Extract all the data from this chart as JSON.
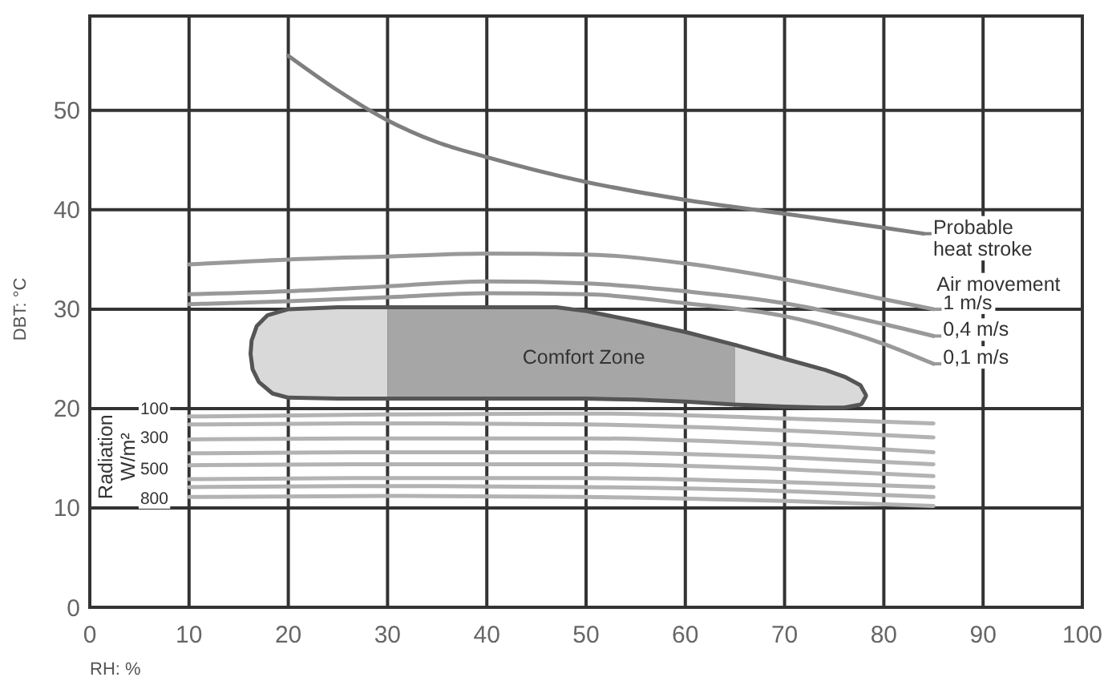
{
  "chart_data": {
    "type": "line",
    "xlabel": "RH: %",
    "ylabel": "DBT: °C",
    "xlim": [
      0,
      100
    ],
    "ylim": [
      0,
      59.5
    ],
    "xticks": [
      0,
      10,
      20,
      30,
      40,
      50,
      60,
      70,
      80,
      90,
      100
    ],
    "yticks": [
      0,
      10,
      20,
      30,
      40,
      50
    ],
    "grid": true,
    "legend": "right",
    "legend_title": "Air movement",
    "marker": "none",
    "line_style": "solid",
    "series": [
      {
        "type": "area",
        "color": "#d9d9d9",
        "x": [
          30,
          25,
          20,
          18,
          17,
          16.5,
          16.4,
          16.6,
          17.2,
          18.5,
          20,
          25,
          30
        ],
        "values": [
          30,
          30,
          29.8,
          29.2,
          28.2,
          26.8,
          25.5,
          24,
          22.8,
          21.7,
          21.3,
          21.2,
          21.2
        ]
      },
      {
        "type": "area",
        "name": "Comfort Zone",
        "color": "#a6a6a6",
        "x": [
          30,
          40,
          47,
          50,
          55,
          60,
          65,
          65,
          60,
          55,
          50,
          40,
          30
        ],
        "values": [
          30,
          30,
          30,
          29.6,
          28.6,
          27.5,
          26.2,
          20.6,
          20.9,
          21.1,
          21.2,
          21.2,
          21.2
        ]
      },
      {
        "type": "area",
        "color": "#d9d9d9",
        "x": [
          65,
          70,
          74,
          76,
          77.5,
          78,
          77.6,
          76,
          74,
          70,
          65
        ],
        "values": [
          26.2,
          24.8,
          23.7,
          23,
          22.2,
          21.3,
          20.6,
          20.3,
          20.3,
          20.4,
          20.6
        ]
      },
      {
        "name": "Probable heat stroke",
        "color": "#7f7f7f",
        "x": [
          20,
          25,
          30,
          35,
          40,
          50,
          60,
          70,
          80,
          84
        ],
        "values": [
          55.5,
          52,
          49,
          46.8,
          45.3,
          42.8,
          41,
          39.6,
          38.2,
          37.6
        ]
      },
      {
        "name": "1 m/s",
        "color": "#999999",
        "x": [
          10,
          20,
          30,
          40,
          50,
          60,
          70,
          80,
          85
        ],
        "values": [
          34.5,
          35,
          35.3,
          35.6,
          35.5,
          34.6,
          33,
          31,
          30
        ]
      },
      {
        "name": "0,4 m/s",
        "color": "#999999",
        "x": [
          10,
          20,
          30,
          40,
          50,
          60,
          70,
          80,
          85
        ],
        "values": [
          31.5,
          31.8,
          32.3,
          32.8,
          32.6,
          31.8,
          30.6,
          28.5,
          27.3
        ]
      },
      {
        "name": "0,1 m/s",
        "color": "#999999",
        "x": [
          10,
          20,
          30,
          40,
          50,
          60,
          70,
          80,
          85
        ],
        "values": [
          30.5,
          30.8,
          31.2,
          31.6,
          31.5,
          30.6,
          29.3,
          26.5,
          24.5
        ]
      },
      {
        "color": "#b3b3b3",
        "x": [
          10,
          30,
          50,
          70,
          85
        ],
        "values": [
          19.2,
          19.4,
          19.5,
          19,
          18.5
        ]
      },
      {
        "color": "#b3b3b3",
        "x": [
          10,
          30,
          50,
          70,
          85
        ],
        "values": [
          18.4,
          18.5,
          18.4,
          17.8,
          17.1
        ]
      },
      {
        "color": "#b3b3b3",
        "x": [
          10,
          30,
          50,
          70,
          85
        ],
        "values": [
          16.9,
          17,
          17,
          16.4,
          15.6
        ]
      },
      {
        "color": "#b3b3b3",
        "x": [
          10,
          30,
          50,
          70,
          85
        ],
        "values": [
          15.5,
          15.6,
          15.6,
          15.1,
          14.4
        ]
      },
      {
        "color": "#b3b3b3",
        "x": [
          10,
          30,
          50,
          70,
          85
        ],
        "values": [
          14.3,
          14.4,
          14.4,
          13.9,
          13.2
        ]
      },
      {
        "color": "#b3b3b3",
        "x": [
          10,
          30,
          50,
          70,
          85
        ],
        "values": [
          12.9,
          13,
          13,
          12.6,
          12.1
        ]
      },
      {
        "color": "#b3b3b3",
        "x": [
          10,
          30,
          50,
          70,
          85
        ],
        "values": [
          12.1,
          12.2,
          12.1,
          11.7,
          11.1
        ]
      },
      {
        "color": "#b3b3b3",
        "x": [
          10,
          30,
          50,
          70,
          85
        ],
        "values": [
          11.1,
          11.2,
          11.1,
          10.7,
          10.2
        ]
      }
    ],
    "annotations": [
      "Radiation W/m²",
      {
        "text": "100",
        "y": 20
      },
      {
        "text": "300",
        "y": 17.1
      },
      {
        "text": "500",
        "y": 14
      },
      {
        "text": "800",
        "y": 11
      }
    ]
  }
}
